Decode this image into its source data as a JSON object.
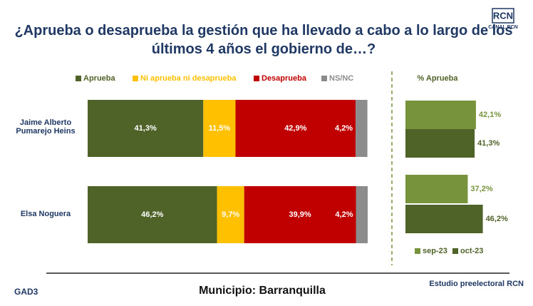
{
  "title": "¿Aprueba o desaprueba la gestión que ha llevado a cabo a lo largo de los últimos 4 años el gobierno de…?",
  "logo": {
    "brand": "RCN",
    "caption": "CANAL RCN"
  },
  "footer": {
    "left": "GAD3",
    "center": "Municipio: Barranquilla",
    "right": "Estudio preelectoral RCN"
  },
  "chart_data": [
    {
      "type": "bar",
      "orientation": "horizontal",
      "stacked": true,
      "categories": [
        "Jaime Alberto Pumarejo Heins",
        "Elsa Noguera"
      ],
      "series": [
        {
          "name": "Aprueba",
          "color": "#4f6228",
          "values": [
            41.3,
            46.2
          ],
          "value_labels": [
            "41,3%",
            "46,2%"
          ]
        },
        {
          "name": "Ni aprueba ni desaprueba",
          "color": "#ffc000",
          "values": [
            11.5,
            9.7
          ],
          "value_labels": [
            "11,5%",
            "9,7%"
          ]
        },
        {
          "name": "Desaprueba",
          "color": "#c00000",
          "values": [
            42.9,
            39.9
          ],
          "value_labels": [
            "42,9%",
            "39,9%"
          ]
        },
        {
          "name": "NS/NC",
          "color": "#8c8c8c",
          "values": [
            4.2,
            4.2
          ],
          "value_labels": [
            "4,2%",
            "4,2%"
          ]
        }
      ]
    },
    {
      "type": "bar",
      "orientation": "horizontal",
      "stacked": false,
      "title": "% Aprueba",
      "series": [
        {
          "name": "sep-23",
          "color": "#77933c",
          "values": [
            42.1,
            37.2
          ],
          "value_labels": [
            "42,1%",
            "37,2%"
          ]
        },
        {
          "name": "oct-23",
          "color": "#4f6228",
          "values": [
            41.3,
            46.2
          ],
          "value_labels": [
            "41,3%",
            "46,2%"
          ]
        }
      ]
    }
  ]
}
